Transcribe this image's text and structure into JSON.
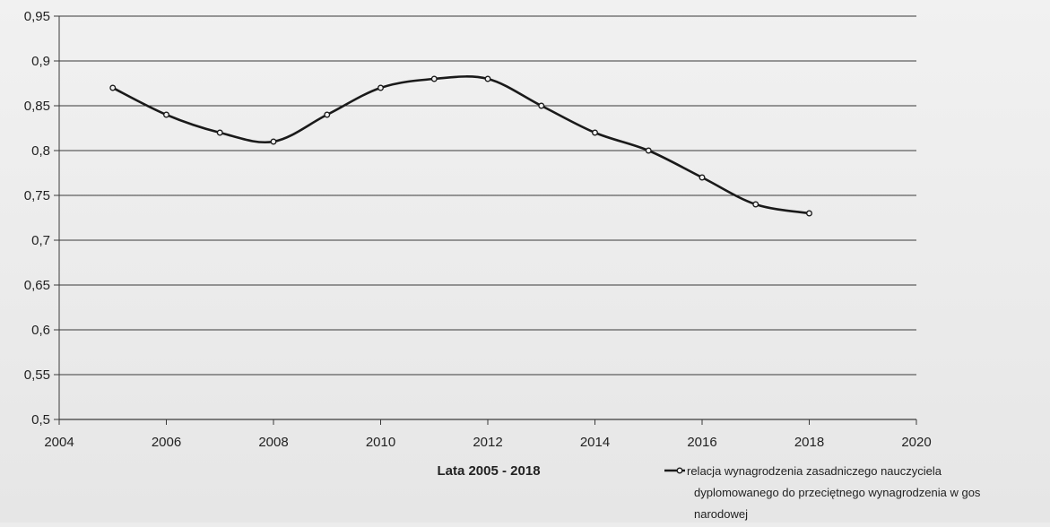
{
  "chart_data": {
    "type": "line",
    "title": "",
    "xlabel": "Lata 2005 - 2018",
    "ylabel": "",
    "xlim": [
      2004,
      2020
    ],
    "ylim": [
      0.5,
      0.95
    ],
    "x_ticks": [
      2004,
      2006,
      2008,
      2010,
      2012,
      2014,
      2016,
      2018,
      2020
    ],
    "x_tick_labels": [
      "2004",
      "2006",
      "2008",
      "2010",
      "2012",
      "2014",
      "2016",
      "2018",
      "2020"
    ],
    "y_ticks": [
      0.5,
      0.55,
      0.6,
      0.65,
      0.7,
      0.75,
      0.8,
      0.85,
      0.9,
      0.95
    ],
    "y_tick_labels": [
      "0,5",
      "0,55",
      "0,6",
      "0,65",
      "0,7",
      "0,75",
      "0,8",
      "0,85",
      "0,9",
      "0,95"
    ],
    "grid": "horizontal",
    "legend_position": "bottom-right",
    "colors": {
      "line": "#1a1a1a",
      "grid": "#3a3a3a",
      "marker_fill": "#f2f2f2",
      "background": "#ececec"
    },
    "series": [
      {
        "name": "relacja wynagrodzenia zasadniczego nauczyciela dyplomowanego do przeciętnego wynagrodzenia w gos narodowej",
        "legend_lines": [
          "relacja wynagrodzenia zasadniczego nauczyciela",
          "dyplomowanego do przeciętnego wynagrodzenia w gos",
          "narodowej"
        ],
        "x": [
          2005,
          2006,
          2007,
          2008,
          2009,
          2010,
          2011,
          2012,
          2013,
          2014,
          2015,
          2016,
          2017,
          2018
        ],
        "y": [
          0.87,
          0.84,
          0.82,
          0.81,
          0.84,
          0.87,
          0.88,
          0.88,
          0.85,
          0.82,
          0.8,
          0.77,
          0.74,
          0.73
        ]
      }
    ]
  }
}
